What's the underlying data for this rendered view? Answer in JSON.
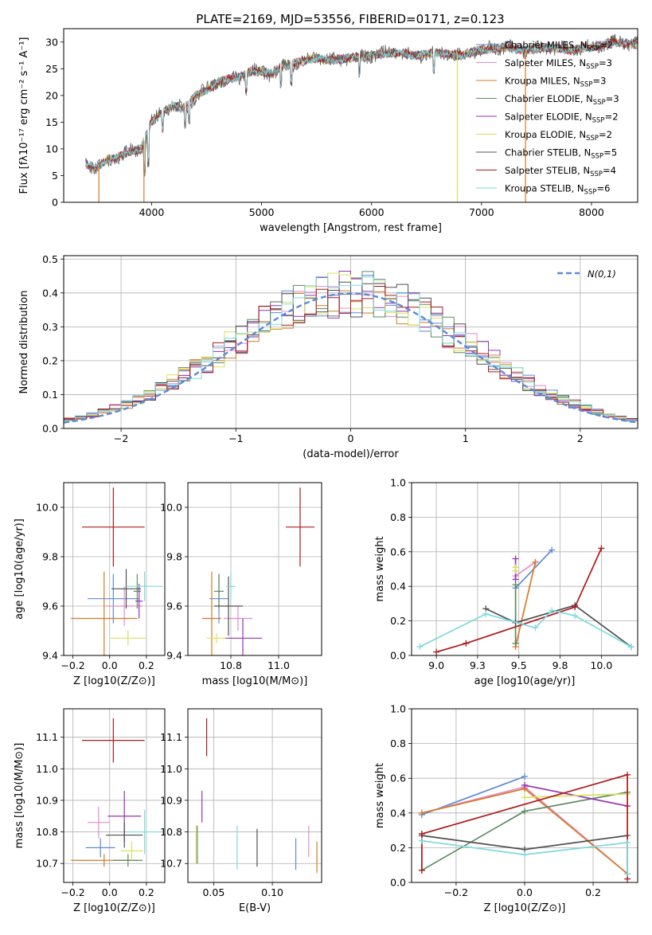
{
  "colors": {
    "Chabrier MILES": "#5b8bd6",
    "Salpeter MILES": "#e48ccd",
    "Kroupa MILES": "#d67a25",
    "Chabrier ELODIE": "#5e8a60",
    "Salpeter ELODIE": "#9533b0",
    "Kroupa ELODIE": "#d9e05c",
    "Chabrier STELIB": "#505050",
    "Salpeter STELIB": "#ad1a1a",
    "Kroupa STELIB": "#7dd9de",
    "normal_curve": "#5b8bd6"
  },
  "chart_data": [
    {
      "id": "spectrum",
      "type": "line",
      "title": "PLATE=2169, MJD=53556, FIBERID=0171, z=0.123",
      "xlabel": "wavelength [Angstrom, rest frame]",
      "ylabel": "Flux [fλ10⁻¹⁷ erg cm⁻² s⁻¹ A⁻¹]",
      "xlim": [
        3200,
        8420
      ],
      "ylim": [
        0,
        32.5
      ],
      "xticks": [
        4000,
        5000,
        6000,
        7000,
        8000
      ],
      "yticks": [
        0,
        5,
        10,
        15,
        20,
        25,
        30
      ],
      "grid": false,
      "legend_position": "top-right",
      "legend": [
        {
          "name": "Chabrier MILES",
          "n_ssp": "2"
        },
        {
          "name": "Salpeter MILES",
          "n_ssp": "3"
        },
        {
          "name": "Kroupa MILES",
          "n_ssp": "3"
        },
        {
          "name": "Chabrier ELODIE",
          "n_ssp": "3"
        },
        {
          "name": "Salpeter ELODIE",
          "n_ssp": "2"
        },
        {
          "name": "Kroupa ELODIE",
          "n_ssp": "2"
        },
        {
          "name": "Chabrier STELIB",
          "n_ssp": "5"
        },
        {
          "name": "Salpeter STELIB",
          "n_ssp": "4"
        },
        {
          "name": "Kroupa STELIB",
          "n_ssp": "6"
        }
      ],
      "continuum": [
        [
          3400,
          7.2
        ],
        [
          3500,
          6.5
        ],
        [
          3600,
          8
        ],
        [
          3700,
          8.5
        ],
        [
          3800,
          9.5
        ],
        [
          3900,
          10
        ],
        [
          4000,
          15
        ],
        [
          4100,
          17
        ],
        [
          4200,
          18
        ],
        [
          4300,
          17.5
        ],
        [
          4400,
          20
        ],
        [
          4500,
          21
        ],
        [
          4600,
          22.5
        ],
        [
          4700,
          23
        ],
        [
          4800,
          23.5
        ],
        [
          4900,
          24.5
        ],
        [
          5000,
          24.5
        ],
        [
          5100,
          24
        ],
        [
          5200,
          25.5
        ],
        [
          5300,
          26
        ],
        [
          5400,
          26.5
        ],
        [
          5500,
          27
        ],
        [
          5600,
          26.5
        ],
        [
          5800,
          27
        ],
        [
          6000,
          27.5
        ],
        [
          6200,
          28
        ],
        [
          6400,
          27.5
        ],
        [
          6600,
          28
        ],
        [
          6800,
          27.5
        ],
        [
          7000,
          28.5
        ],
        [
          7200,
          29
        ],
        [
          7400,
          28.5
        ],
        [
          7600,
          29
        ],
        [
          7800,
          28.5
        ],
        [
          8000,
          29
        ],
        [
          8200,
          30
        ],
        [
          8420,
          29.5
        ]
      ]
    },
    {
      "id": "residuals",
      "type": "histogram",
      "xlabel": "(data-model)/error",
      "ylabel": "Normed distribution",
      "xlim": [
        -2.5,
        2.5
      ],
      "ylim": [
        0,
        0.51
      ],
      "xticks": [
        -2,
        -1,
        0,
        1,
        2
      ],
      "yticks": [
        0.0,
        0.1,
        0.2,
        0.3,
        0.4,
        0.5
      ],
      "grid": true,
      "legend_position": "top-right",
      "legend": [
        "N(0,1)"
      ],
      "bin_width": 0.1,
      "curve": "normal pdf, mean 0, sigma 1"
    },
    {
      "id": "age_vs_Z",
      "type": "errorbar",
      "xlabel": "Z [log10(Z/Z⊙)]",
      "ylabel": "age  [log10(age/yr)]",
      "xlim": [
        -0.25,
        0.3
      ],
      "ylim": [
        9.4,
        10.1
      ],
      "xticks": [
        -0.2,
        0.0,
        0.2
      ],
      "yticks": [
        9.4,
        9.6,
        9.8,
        10.0
      ],
      "grid": true,
      "points": [
        {
          "model": "Chabrier MILES",
          "x": 0.02,
          "xerr": 0.14,
          "y": 9.63,
          "yerr": 0.1
        },
        {
          "model": "Salpeter MILES",
          "x": 0.08,
          "xerr": 0.1,
          "y": 9.6,
          "yerr": 0.08
        },
        {
          "model": "Kroupa MILES",
          "x": -0.03,
          "xerr": 0.18,
          "y": 9.55,
          "yerr": 0.19
        },
        {
          "model": "Chabrier ELODIE",
          "x": 0.15,
          "xerr": 0.02,
          "y": 9.66,
          "yerr": 0.07
        },
        {
          "model": "Salpeter ELODIE",
          "x": 0.16,
          "xerr": 0.02,
          "y": 9.62,
          "yerr": 0.07
        },
        {
          "model": "Kroupa ELODIE",
          "x": 0.1,
          "xerr": 0.1,
          "y": 9.47,
          "yerr": 0.03
        },
        {
          "model": "Chabrier STELIB",
          "x": 0.09,
          "xerr": 0.08,
          "y": 9.67,
          "yerr": 0.08
        },
        {
          "model": "Salpeter STELIB",
          "x": 0.02,
          "xerr": 0.17,
          "y": 9.92,
          "yerr": 0.16
        },
        {
          "model": "Kroupa STELIB",
          "x": 0.19,
          "xerr": 0.1,
          "y": 9.68,
          "yerr": 0.06
        }
      ]
    },
    {
      "id": "age_vs_mass",
      "type": "errorbar",
      "xlabel": "mass [log10(M/M⊙)]",
      "ylabel": "",
      "xlim": [
        10.62,
        11.18
      ],
      "ylim": [
        9.4,
        10.1
      ],
      "xticks": [
        10.8,
        11.0
      ],
      "yticks": [
        9.4,
        9.6,
        9.8,
        10.0
      ],
      "grid": true,
      "points": [
        {
          "model": "Chabrier MILES",
          "x": 10.75,
          "xerr": 0.04,
          "y": 9.63,
          "yerr": 0.1
        },
        {
          "model": "Salpeter MILES",
          "x": 10.83,
          "xerr": 0.06,
          "y": 9.55,
          "yerr": 0.05
        },
        {
          "model": "Kroupa MILES",
          "x": 10.72,
          "xerr": 0.04,
          "y": 9.55,
          "yerr": 0.19
        },
        {
          "model": "Chabrier ELODIE",
          "x": 10.75,
          "xerr": 0.02,
          "y": 9.66,
          "yerr": 0.07
        },
        {
          "model": "Salpeter ELODIE",
          "x": 10.85,
          "xerr": 0.08,
          "y": 9.47,
          "yerr": 0.08
        },
        {
          "model": "Kroupa ELODIE",
          "x": 10.74,
          "xerr": 0.04,
          "y": 9.47,
          "yerr": 0.02
        },
        {
          "model": "Chabrier STELIB",
          "x": 10.79,
          "xerr": 0.06,
          "y": 9.6,
          "yerr": 0.12
        },
        {
          "model": "Salpeter STELIB",
          "x": 11.09,
          "xerr": 0.06,
          "y": 9.92,
          "yerr": 0.16
        },
        {
          "model": "Kroupa STELIB",
          "x": 10.8,
          "xerr": 0.02,
          "y": 9.68,
          "yerr": 0.06
        }
      ]
    },
    {
      "id": "weight_vs_age",
      "type": "line",
      "xlabel": "age  [log10(age/yr)]",
      "ylabel": "mass weight",
      "xlim": [
        8.85,
        10.22
      ],
      "ylim": [
        0,
        1.0
      ],
      "xticks": [
        9.0,
        9.25,
        9.5,
        9.75,
        10.0
      ],
      "yticks": [
        0.0,
        0.2,
        0.4,
        0.6,
        0.8,
        1.0
      ],
      "grid": true,
      "series": [
        {
          "model": "Chabrier MILES",
          "x": [
            9.48,
            9.7
          ],
          "y": [
            0.39,
            0.61
          ]
        },
        {
          "model": "Salpeter MILES",
          "x": [
            9.48,
            9.6
          ],
          "y": [
            0.46,
            0.54
          ]
        },
        {
          "model": "Kroupa MILES",
          "x": [
            9.48,
            9.6
          ],
          "y": [
            0.05,
            0.54
          ]
        },
        {
          "model": "Chabrier ELODIE",
          "x": [
            9.48,
            9.48
          ],
          "y": [
            0.07,
            0.41
          ]
        },
        {
          "model": "Salpeter ELODIE",
          "x": [
            9.48,
            9.48
          ],
          "y": [
            0.44,
            0.56
          ]
        },
        {
          "model": "Kroupa ELODIE",
          "x": [
            9.48,
            9.48
          ],
          "y": [
            0.49,
            0.51
          ]
        },
        {
          "model": "Chabrier STELIB",
          "x": [
            9.3,
            9.48,
            9.84,
            10.18
          ],
          "y": [
            0.27,
            0.19,
            0.29,
            0.05
          ]
        },
        {
          "model": "Salpeter STELIB",
          "x": [
            9.0,
            9.18,
            9.84,
            10.0
          ],
          "y": [
            0.02,
            0.07,
            0.28,
            0.62
          ]
        },
        {
          "model": "Kroupa STELIB",
          "x": [
            8.9,
            9.3,
            9.6,
            9.7,
            9.84,
            10.18
          ],
          "y": [
            0.05,
            0.24,
            0.16,
            0.26,
            0.23,
            0.05
          ]
        }
      ]
    },
    {
      "id": "mass_vs_Z",
      "type": "errorbar",
      "xlabel": "Z [log10(Z/Z⊙)]",
      "ylabel": "mass [log10(M/M⊙)]",
      "xlim": [
        -0.25,
        0.3
      ],
      "ylim": [
        10.64,
        11.19
      ],
      "xticks": [
        -0.2,
        0.0,
        0.2
      ],
      "yticks": [
        10.7,
        10.8,
        10.9,
        11.0,
        11.1
      ],
      "grid": true,
      "points": [
        {
          "model": "Chabrier MILES",
          "x": -0.05,
          "xerr": 0.08,
          "y": 10.75,
          "yerr": 0.03
        },
        {
          "model": "Salpeter MILES",
          "x": -0.06,
          "xerr": 0.06,
          "y": 10.83,
          "yerr": 0.05
        },
        {
          "model": "Kroupa MILES",
          "x": -0.03,
          "xerr": 0.18,
          "y": 10.71,
          "yerr": 0.02
        },
        {
          "model": "Chabrier ELODIE",
          "x": 0.1,
          "xerr": 0.08,
          "y": 10.71,
          "yerr": 0.02
        },
        {
          "model": "Salpeter ELODIE",
          "x": 0.08,
          "xerr": 0.09,
          "y": 10.85,
          "yerr": 0.08
        },
        {
          "model": "Kroupa ELODIE",
          "x": 0.12,
          "xerr": 0.06,
          "y": 10.74,
          "yerr": 0.03
        },
        {
          "model": "Chabrier STELIB",
          "x": 0.08,
          "xerr": 0.1,
          "y": 10.79,
          "yerr": 0.04
        },
        {
          "model": "Salpeter STELIB",
          "x": 0.02,
          "xerr": 0.17,
          "y": 11.09,
          "yerr": 0.07
        },
        {
          "model": "Kroupa STELIB",
          "x": 0.19,
          "xerr": 0.1,
          "y": 10.8,
          "yerr": 0.07
        }
      ]
    },
    {
      "id": "mass_vs_ebv",
      "type": "errorbar",
      "xlabel": "E(B-V)",
      "ylabel": "",
      "xlim": [
        0.028,
        0.142
      ],
      "ylim": [
        10.64,
        11.19
      ],
      "xticks": [
        0.05,
        0.1
      ],
      "yticks": [
        10.7,
        10.8,
        10.9,
        11.0,
        11.1
      ],
      "grid": true,
      "points": [
        {
          "model": "Chabrier MILES",
          "x": 0.12,
          "xerr": 0,
          "y": 10.73,
          "yerr": 0.05
        },
        {
          "model": "Salpeter MILES",
          "x": 0.131,
          "xerr": 0,
          "y": 10.77,
          "yerr": 0.05
        },
        {
          "model": "Kroupa MILES",
          "x": 0.138,
          "xerr": 0,
          "y": 10.72,
          "yerr": 0.05
        },
        {
          "model": "Chabrier ELODIE",
          "x": 0.036,
          "xerr": 0,
          "y": 10.76,
          "yerr": 0.06
        },
        {
          "model": "Salpeter ELODIE",
          "x": 0.04,
          "xerr": 0,
          "y": 10.88,
          "yerr": 0.05
        },
        {
          "model": "Kroupa ELODIE",
          "x": 0.035,
          "xerr": 0,
          "y": 10.76,
          "yerr": 0.06
        },
        {
          "model": "Chabrier STELIB",
          "x": 0.087,
          "xerr": 0,
          "y": 10.75,
          "yerr": 0.06
        },
        {
          "model": "Salpeter STELIB",
          "x": 0.044,
          "xerr": 0,
          "y": 11.1,
          "yerr": 0.06
        },
        {
          "model": "Kroupa STELIB",
          "x": 0.07,
          "xerr": 0,
          "y": 10.75,
          "yerr": 0.07
        }
      ]
    },
    {
      "id": "weight_vs_Z",
      "type": "line",
      "xlabel": "Z [log10(Z/Z⊙)]",
      "ylabel": "mass weight",
      "xlim": [
        -0.33,
        0.33
      ],
      "ylim": [
        0,
        1.0
      ],
      "xticks": [
        -0.2,
        0.0,
        0.2
      ],
      "yticks": [
        0.0,
        0.2,
        0.4,
        0.6,
        0.8,
        1.0
      ],
      "grid": true,
      "series": [
        {
          "model": "Chabrier MILES",
          "x": [
            -0.3,
            0.0
          ],
          "y": [
            0.39,
            0.61
          ]
        },
        {
          "model": "Salpeter MILES",
          "x": [
            -0.3,
            0.0,
            0.3
          ],
          "y": [
            0.4,
            0.55,
            0.05
          ]
        },
        {
          "model": "Kroupa MILES",
          "x": [
            -0.3,
            0.0,
            0.3
          ],
          "y": [
            0.4,
            0.54,
            0.05
          ]
        },
        {
          "model": "Chabrier ELODIE",
          "x": [
            -0.3,
            0.0,
            0.3
          ],
          "y": [
            0.07,
            0.41,
            0.52
          ]
        },
        {
          "model": "Salpeter ELODIE",
          "x": [
            0.0,
            0.3
          ],
          "y": [
            0.56,
            0.44
          ]
        },
        {
          "model": "Kroupa ELODIE",
          "x": [
            0.0,
            0.3
          ],
          "y": [
            0.49,
            0.51
          ]
        },
        {
          "model": "Chabrier STELIB",
          "x": [
            -0.3,
            0.0,
            0.3
          ],
          "y": [
            0.27,
            0.19,
            0.27
          ]
        },
        {
          "model": "Salpeter STELIB",
          "x": [
            -0.3,
            -0.3,
            0.3,
            0.3
          ],
          "y": [
            0.07,
            0.28,
            0.62,
            0.02
          ]
        },
        {
          "model": "Kroupa STELIB",
          "x": [
            -0.3,
            0.0,
            0.3,
            0.3
          ],
          "y": [
            0.24,
            0.16,
            0.23,
            0.05
          ]
        }
      ]
    }
  ]
}
